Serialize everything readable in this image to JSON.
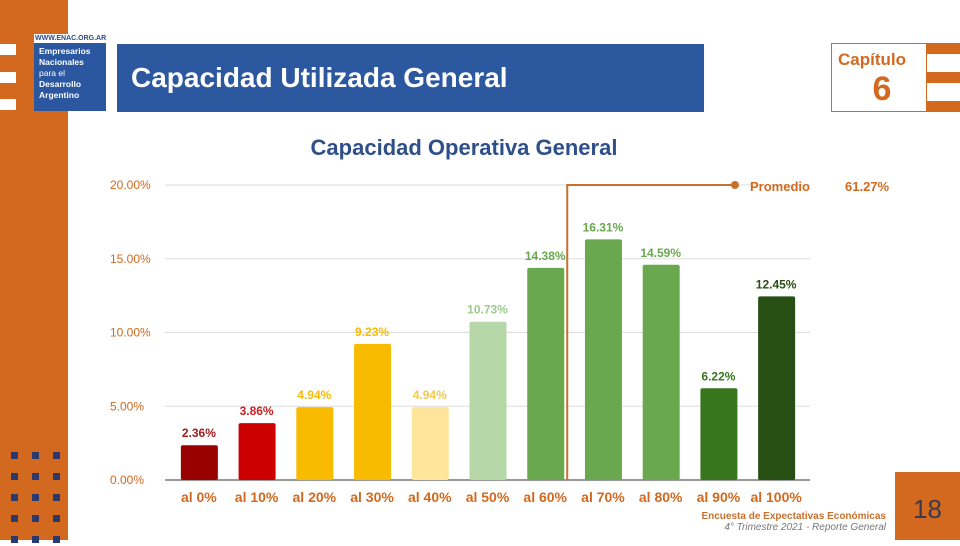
{
  "logo": {
    "url": "WWW.ENAC.ORG.AR",
    "lines": [
      "Empresarios",
      "Nacionales",
      "para el",
      "Desarrollo",
      "Argentino"
    ]
  },
  "header": {
    "title": "Capacidad Utilizada General",
    "chapter_label": "Capítulo",
    "chapter_number": "6"
  },
  "footer": {
    "line1": "Encuesta de Expectativas Económicas",
    "line2": "4° Trimestre 2021 - Reporte General",
    "page": "18"
  },
  "colors": {
    "brand_orange": "#d2691e",
    "brand_blue": "#2c58a0"
  },
  "chart_data": {
    "type": "bar",
    "title": "Capacidad Operativa General",
    "categories": [
      "al 0%",
      "al 10%",
      "al 20%",
      "al 30%",
      "al 40%",
      "al 50%",
      "al 60%",
      "al 70%",
      "al 80%",
      "al 90%",
      "al 100%"
    ],
    "values": [
      2.36,
      3.86,
      4.94,
      9.23,
      4.94,
      10.73,
      14.38,
      16.31,
      14.59,
      6.22,
      12.45
    ],
    "data_labels": [
      "2.36%",
      "3.86%",
      "4.94%",
      "9.23%",
      "4.94%",
      "10.73%",
      "14.38%",
      "16.31%",
      "14.59%",
      "6.22%",
      "12.45%"
    ],
    "bar_colors": [
      "#990000",
      "#cc0000",
      "#f9bb00",
      "#f9bb00",
      "#ffe599",
      "#b6d7a8",
      "#6aa84f",
      "#6aa84f",
      "#6aa84f",
      "#38761d",
      "#274e13"
    ],
    "label_colors": [
      "#a61c1c",
      "#cc1f1f",
      "#f9bb00",
      "#f9bb00",
      "#f6c94a",
      "#9ccc8a",
      "#6aa84f",
      "#6aa84f",
      "#6aa84f",
      "#38761d",
      "#274e13"
    ],
    "ylim": [
      0,
      20
    ],
    "yticks": [
      "0.00%",
      "5.00%",
      "10.00%",
      "15.00%",
      "20.00%"
    ],
    "grid": true,
    "annotation": {
      "label": "Promedio",
      "value": "61.27%",
      "marker_position": "al 60%"
    }
  }
}
